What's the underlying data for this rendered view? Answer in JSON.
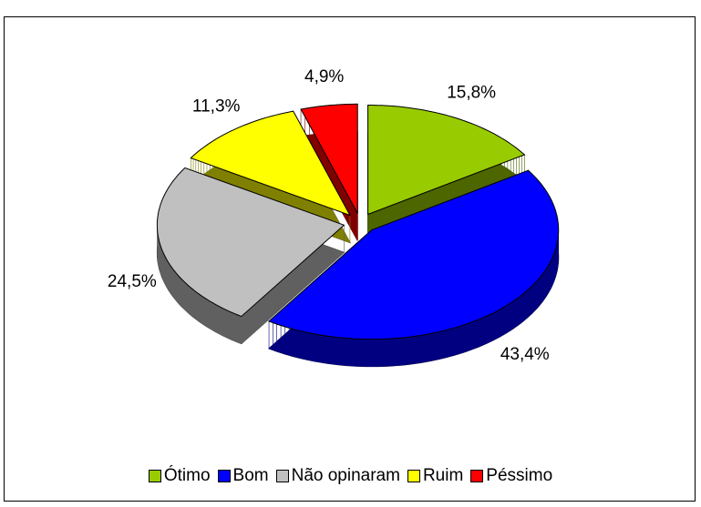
{
  "chart_data": {
    "type": "pie3d",
    "categories": [
      "Ótimo",
      "Bom",
      "Não opinaram",
      "Ruim",
      "Péssimo"
    ],
    "values": [
      15.8,
      43.4,
      24.5,
      11.3,
      4.9
    ],
    "value_labels": [
      "15,8%",
      "43,4%",
      "24,5%",
      "11,3%",
      "4,9%"
    ],
    "colors": [
      "#99cc00",
      "#0000ff",
      "#c0c0c0",
      "#ffff00",
      "#ff0000"
    ],
    "legend": "bottom"
  }
}
